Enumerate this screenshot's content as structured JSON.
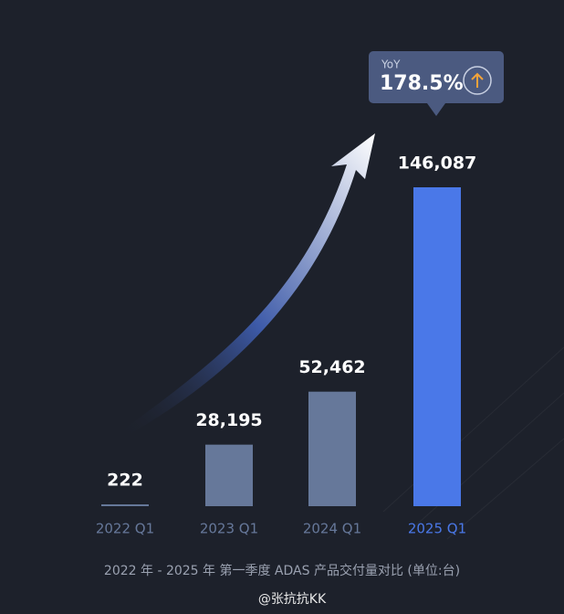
{
  "chart_data": {
    "type": "bar",
    "categories": [
      "2022 Q1",
      "2023 Q1",
      "2024 Q1",
      "2025 Q1"
    ],
    "values": [
      222,
      28195,
      52462,
      146087
    ],
    "value_labels": [
      "222",
      "28,195",
      "52,462",
      "146,087"
    ],
    "colors": [
      "#66789a",
      "#66789a",
      "#66789a",
      "#4a78e8"
    ],
    "annotation": {
      "label": "YoY",
      "text": "178.5%"
    },
    "caption": "2022 年 - 2025 年 第一季度 ADAS 产品交付量对比 (单位:台)",
    "watermark": "@张抗抗KK"
  }
}
